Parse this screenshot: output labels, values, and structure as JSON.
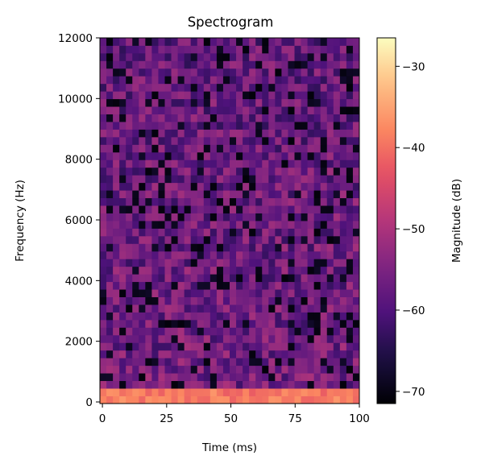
{
  "chart_data": {
    "type": "heatmap",
    "title": "Spectrogram",
    "xlabel": "Time (ms)",
    "ylabel": "Frequency (Hz)",
    "colorbar_label": "Magnitude (dB)",
    "colormap": "magma",
    "xlim": [
      0,
      100
    ],
    "ylim": [
      0,
      12000
    ],
    "clim": [
      -71.5,
      -26.5
    ],
    "x_ticks": [
      "0",
      "25",
      "50",
      "75",
      "100"
    ],
    "y_ticks": [
      "0",
      "2000",
      "4000",
      "6000",
      "8000",
      "10000",
      "12000"
    ],
    "colorbar_ticks": [
      "−30",
      "−40",
      "−50",
      "−60",
      "−70"
    ],
    "n_time_bins": 40,
    "n_freq_bins": 48,
    "time_bin_width_ms": 2.5,
    "freq_bin_width_hz": 250,
    "colors": {
      "background": "#ffffff",
      "axes": "#000000"
    }
  }
}
